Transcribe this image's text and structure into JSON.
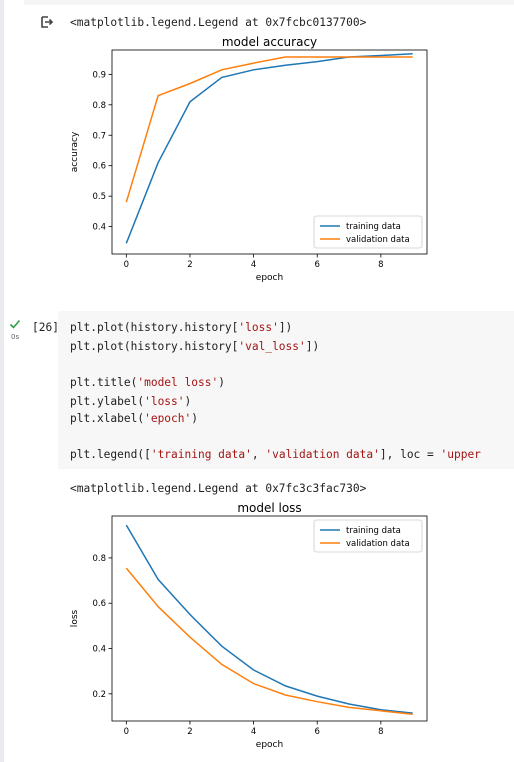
{
  "output1": {
    "repr": "<matplotlib.legend.Legend at 0x7fcbc0137700>"
  },
  "cell": {
    "count": "[26]",
    "time": "0s",
    "lines": [
      {
        "pre": "plt.plot(history.history[",
        "str": "'loss'",
        "post": "])"
      },
      {
        "pre": "plt.plot(history.history[",
        "str": "'val_loss'",
        "post": "])"
      },
      {
        "pre": "",
        "str": "",
        "post": ""
      },
      {
        "pre": "plt.title(",
        "str": "'model loss'",
        "post": ")"
      },
      {
        "pre": "plt.ylabel(",
        "str": "'loss'",
        "post": ")"
      },
      {
        "pre": "plt.xlabel(",
        "str": "'epoch'",
        "post": ")"
      },
      {
        "pre": "",
        "str": "",
        "post": ""
      },
      {
        "pre": "plt.legend([",
        "str": "'training data'",
        "post": ", ",
        "str2": "'validation data'",
        "post2": "], loc = ",
        "str3": "'upper"
      }
    ]
  },
  "output2": {
    "repr": "<matplotlib.legend.Legend at 0x7fc3c3fac730>"
  },
  "chart_data": [
    {
      "type": "line",
      "title": "model accuracy",
      "xlabel": "epoch",
      "ylabel": "accuracy",
      "x": [
        0,
        1,
        2,
        3,
        4,
        5,
        6,
        7,
        8,
        9
      ],
      "xlim": [
        -0.45,
        9.45
      ],
      "ylim": [
        0.31,
        0.98
      ],
      "xticks": [
        0,
        2,
        4,
        6,
        8
      ],
      "yticks": [
        0.4,
        0.5,
        0.6,
        0.7,
        0.8,
        0.9
      ],
      "legend_loc": "lower right",
      "series": [
        {
          "name": "training data",
          "color": "#1f77b4",
          "values": [
            0.345,
            0.61,
            0.81,
            0.89,
            0.915,
            0.93,
            0.942,
            0.957,
            0.962,
            0.968
          ]
        },
        {
          "name": "validation data",
          "color": "#ff7f0e",
          "values": [
            0.48,
            0.83,
            0.87,
            0.915,
            0.937,
            0.957,
            0.957,
            0.957,
            0.957,
            0.957
          ]
        }
      ]
    },
    {
      "type": "line",
      "title": "model loss",
      "xlabel": "epoch",
      "ylabel": "loss",
      "x": [
        0,
        1,
        2,
        3,
        4,
        5,
        6,
        7,
        8,
        9
      ],
      "xlim": [
        -0.45,
        9.45
      ],
      "ylim": [
        0.08,
        0.985
      ],
      "xticks": [
        0,
        2,
        4,
        6,
        8
      ],
      "yticks": [
        0.2,
        0.4,
        0.6,
        0.8
      ],
      "legend_loc": "upper right",
      "series": [
        {
          "name": "training data",
          "color": "#1f77b4",
          "values": [
            0.945,
            0.705,
            0.55,
            0.41,
            0.305,
            0.235,
            0.19,
            0.155,
            0.13,
            0.115
          ]
        },
        {
          "name": "validation data",
          "color": "#ff7f0e",
          "values": [
            0.755,
            0.585,
            0.45,
            0.33,
            0.245,
            0.195,
            0.165,
            0.14,
            0.125,
            0.11
          ]
        }
      ]
    }
  ]
}
